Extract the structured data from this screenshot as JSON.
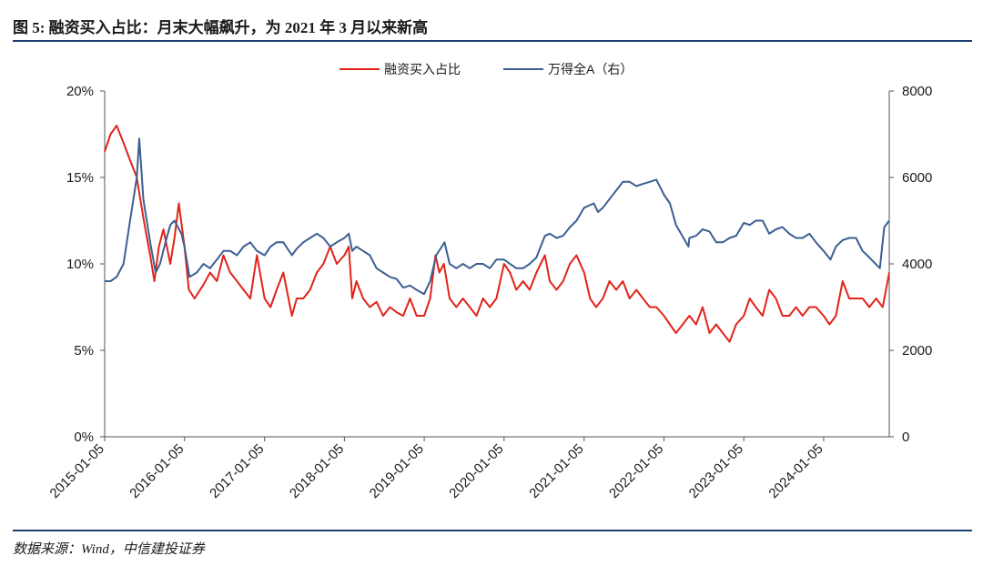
{
  "header": {
    "title": "图 5: 融资买入占比：月末大幅飙升，为 2021 年 3 月以来新高"
  },
  "footer": {
    "source": "数据来源：Wind，中信建投证券"
  },
  "colors": {
    "margin_ratio": "#e2231a",
    "wind_a": "#3b5f92",
    "rule": "#1f3f6e",
    "axis": "#555555"
  },
  "chart_data": {
    "type": "line",
    "title": "",
    "xlabel": "",
    "ylabel": "",
    "legend_position": "top-center",
    "grid": false,
    "x_ticks": [
      "2015-01-05",
      "2016-01-05",
      "2017-01-05",
      "2018-01-05",
      "2019-01-05",
      "2020-01-05",
      "2021-01-05",
      "2022-01-05",
      "2023-01-05",
      "2024-01-05"
    ],
    "y_left": {
      "ticks": [
        "0%",
        "5%",
        "10%",
        "15%",
        "20%"
      ],
      "lim": [
        0,
        20
      ]
    },
    "y_right": {
      "ticks": [
        "0",
        "2000",
        "4000",
        "6000",
        "8000"
      ],
      "lim": [
        0,
        8000
      ]
    },
    "series": [
      {
        "name": "融资买入占比",
        "axis": "left",
        "color": "#e2231a",
        "x": [
          "2015-01-05",
          "2015-02-01",
          "2015-03-01",
          "2015-04-01",
          "2015-05-01",
          "2015-06-01",
          "2015-06-20",
          "2015-07-10",
          "2015-08-01",
          "2015-08-20",
          "2015-09-10",
          "2015-10-01",
          "2015-11-01",
          "2015-11-20",
          "2015-12-10",
          "2016-01-05",
          "2016-01-25",
          "2016-02-20",
          "2016-04-01",
          "2016-05-01",
          "2016-06-01",
          "2016-07-01",
          "2016-08-01",
          "2016-09-01",
          "2016-10-01",
          "2016-11-01",
          "2016-12-01",
          "2017-01-05",
          "2017-02-01",
          "2017-03-01",
          "2017-04-01",
          "2017-05-10",
          "2017-06-01",
          "2017-07-01",
          "2017-08-01",
          "2017-09-01",
          "2017-10-01",
          "2017-11-01",
          "2017-12-01",
          "2018-01-05",
          "2018-01-25",
          "2018-02-10",
          "2018-03-01",
          "2018-04-01",
          "2018-05-01",
          "2018-06-01",
          "2018-07-01",
          "2018-08-01",
          "2018-09-01",
          "2018-10-01",
          "2018-11-01",
          "2018-12-01",
          "2019-01-05",
          "2019-02-01",
          "2019-02-25",
          "2019-03-15",
          "2019-04-05",
          "2019-05-01",
          "2019-06-01",
          "2019-07-01",
          "2019-08-01",
          "2019-09-01",
          "2019-10-01",
          "2019-11-01",
          "2019-12-01",
          "2020-01-05",
          "2020-02-01",
          "2020-03-01",
          "2020-04-01",
          "2020-05-01",
          "2020-06-01",
          "2020-07-10",
          "2020-08-01",
          "2020-09-01",
          "2020-10-01",
          "2020-11-01",
          "2020-12-01",
          "2021-01-05",
          "2021-02-01",
          "2021-03-01",
          "2021-04-01",
          "2021-05-01",
          "2021-06-01",
          "2021-07-01",
          "2021-08-01",
          "2021-09-01",
          "2021-10-01",
          "2021-11-01",
          "2021-12-01",
          "2022-01-05",
          "2022-02-01",
          "2022-03-01",
          "2022-04-01",
          "2022-05-01",
          "2022-06-01",
          "2022-07-01",
          "2022-08-01",
          "2022-09-01",
          "2022-10-01",
          "2022-11-01",
          "2022-12-01",
          "2023-01-05",
          "2023-02-01",
          "2023-03-01",
          "2023-04-01",
          "2023-05-01",
          "2023-06-01",
          "2023-07-01",
          "2023-08-01",
          "2023-09-01",
          "2023-10-01",
          "2023-11-01",
          "2023-12-01",
          "2024-01-05",
          "2024-02-01",
          "2024-03-01",
          "2024-04-01",
          "2024-05-01",
          "2024-06-01",
          "2024-07-01",
          "2024-08-01",
          "2024-09-01",
          "2024-10-01",
          "2024-10-31"
        ],
        "values": [
          16.5,
          17.5,
          18.0,
          17.0,
          16.0,
          15.0,
          13.5,
          12.0,
          10.5,
          9.0,
          11.0,
          12.0,
          10.0,
          11.5,
          13.5,
          11.0,
          8.5,
          8.0,
          8.8,
          9.5,
          9.0,
          10.5,
          9.5,
          9.0,
          8.5,
          8.0,
          10.5,
          8.0,
          7.5,
          8.5,
          9.5,
          7.0,
          8.0,
          8.0,
          8.5,
          9.5,
          10.0,
          11.0,
          10.0,
          10.5,
          11.0,
          8.0,
          9.0,
          8.0,
          7.5,
          7.8,
          7.0,
          7.5,
          7.2,
          7.0,
          8.0,
          7.0,
          7.0,
          8.0,
          10.5,
          9.5,
          10.0,
          8.0,
          7.5,
          8.0,
          7.5,
          7.0,
          8.0,
          7.5,
          8.0,
          10.0,
          9.5,
          8.5,
          9.0,
          8.5,
          9.5,
          10.5,
          9.0,
          8.5,
          9.0,
          10.0,
          10.5,
          9.5,
          8.0,
          7.5,
          8.0,
          9.0,
          8.5,
          9.0,
          8.0,
          8.5,
          8.0,
          7.5,
          7.5,
          7.0,
          6.5,
          6.0,
          6.5,
          7.0,
          6.5,
          7.5,
          6.0,
          6.5,
          6.0,
          5.5,
          6.5,
          7.0,
          8.0,
          7.5,
          7.0,
          8.5,
          8.0,
          7.0,
          7.0,
          7.5,
          7.0,
          7.5,
          7.5,
          7.0,
          6.5,
          7.0,
          9.0,
          8.0,
          8.0,
          8.0,
          7.5,
          8.0,
          7.5,
          9.5
        ]
      },
      {
        "name": "万得全A（右）",
        "axis": "right",
        "color": "#3b5f92",
        "x": [
          "2015-01-05",
          "2015-02-01",
          "2015-03-01",
          "2015-04-01",
          "2015-05-01",
          "2015-06-01",
          "2015-06-12",
          "2015-07-01",
          "2015-07-10",
          "2015-08-01",
          "2015-08-26",
          "2015-09-15",
          "2015-10-10",
          "2015-11-01",
          "2015-11-20",
          "2015-12-22",
          "2016-01-05",
          "2016-01-28",
          "2016-03-01",
          "2016-04-01",
          "2016-05-01",
          "2016-06-01",
          "2016-07-01",
          "2016-08-01",
          "2016-09-01",
          "2016-10-01",
          "2016-11-01",
          "2016-12-01",
          "2017-01-05",
          "2017-02-01",
          "2017-03-01",
          "2017-04-01",
          "2017-05-10",
          "2017-06-01",
          "2017-07-01",
          "2017-08-01",
          "2017-09-01",
          "2017-10-01",
          "2017-11-01",
          "2017-12-01",
          "2018-01-05",
          "2018-01-25",
          "2018-02-10",
          "2018-03-01",
          "2018-04-01",
          "2018-05-01",
          "2018-06-01",
          "2018-07-01",
          "2018-08-01",
          "2018-09-01",
          "2018-10-01",
          "2018-11-01",
          "2018-12-01",
          "2019-01-04",
          "2019-02-01",
          "2019-03-01",
          "2019-04-08",
          "2019-05-01",
          "2019-06-01",
          "2019-07-01",
          "2019-08-01",
          "2019-09-01",
          "2019-10-01",
          "2019-11-01",
          "2019-12-01",
          "2020-01-05",
          "2020-02-01",
          "2020-03-01",
          "2020-04-01",
          "2020-05-01",
          "2020-06-01",
          "2020-07-10",
          "2020-08-01",
          "2020-09-01",
          "2020-10-01",
          "2020-11-01",
          "2020-12-01",
          "2021-01-05",
          "2021-02-18",
          "2021-03-10",
          "2021-04-01",
          "2021-05-01",
          "2021-06-01",
          "2021-07-01",
          "2021-08-01",
          "2021-09-01",
          "2021-10-01",
          "2021-11-01",
          "2021-12-01",
          "2022-01-05",
          "2022-02-01",
          "2022-03-01",
          "2022-04-27",
          "2022-05-01",
          "2022-06-01",
          "2022-07-01",
          "2022-08-01",
          "2022-09-01",
          "2022-10-01",
          "2022-11-01",
          "2022-12-01",
          "2023-01-05",
          "2023-02-01",
          "2023-03-01",
          "2023-04-01",
          "2023-05-01",
          "2023-06-01",
          "2023-07-01",
          "2023-08-01",
          "2023-09-01",
          "2023-10-01",
          "2023-11-01",
          "2023-12-01",
          "2024-01-05",
          "2024-02-05",
          "2024-03-01",
          "2024-04-01",
          "2024-05-01",
          "2024-06-01",
          "2024-07-01",
          "2024-08-01",
          "2024-09-18",
          "2024-10-08",
          "2024-10-31"
        ],
        "values": [
          3600,
          3600,
          3700,
          4000,
          5000,
          6000,
          6900,
          5500,
          5200,
          4500,
          3800,
          4000,
          4500,
          4900,
          5000,
          4700,
          4400,
          3700,
          3800,
          4000,
          3900,
          4100,
          4300,
          4300,
          4200,
          4400,
          4500,
          4300,
          4200,
          4400,
          4500,
          4500,
          4200,
          4350,
          4500,
          4600,
          4700,
          4600,
          4400,
          4500,
          4600,
          4700,
          4300,
          4400,
          4300,
          4200,
          3900,
          3800,
          3700,
          3650,
          3450,
          3500,
          3400,
          3300,
          3600,
          4200,
          4500,
          4000,
          3900,
          4000,
          3900,
          4000,
          4000,
          3900,
          4100,
          4100,
          4000,
          3900,
          3900,
          4000,
          4150,
          4650,
          4700,
          4600,
          4650,
          4850,
          5000,
          5300,
          5400,
          5200,
          5300,
          5500,
          5700,
          5900,
          5900,
          5800,
          5850,
          5900,
          5950,
          5600,
          5400,
          4900,
          4400,
          4600,
          4650,
          4800,
          4750,
          4500,
          4500,
          4600,
          4650,
          4950,
          4900,
          5000,
          5000,
          4700,
          4800,
          4850,
          4700,
          4600,
          4600,
          4700,
          4500,
          4300,
          4100,
          4400,
          4550,
          4600,
          4600,
          4300,
          4150,
          3900,
          4850,
          5000
        ]
      }
    ]
  }
}
